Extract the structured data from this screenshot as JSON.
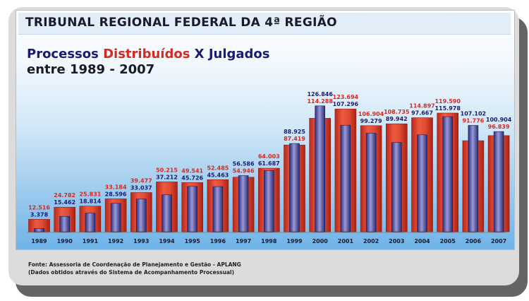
{
  "header": {
    "title": "TRIBUNAL REGIONAL FEDERAL DA 4ª REGIÃO",
    "subtitle_part1": "Processos ",
    "subtitle_part2": "Distribuídos",
    "subtitle_part3": " X ",
    "subtitle_part4": "Julgados",
    "subtitle_line2": "entre 1989 - 2007"
  },
  "footer": {
    "source_line1": "Fonte: Assessoria de Coordenação de Planejamento e Gestão - APLANG",
    "source_line2": "(Dados obtidos através do Sistema de Acompanhamento Processual)"
  },
  "colors": {
    "distribuidos": "#e0442f",
    "julgados": "#5353a8",
    "label_distribuidos": "#d42a20",
    "label_julgados": "#1b1b74"
  },
  "chart_data": {
    "type": "bar",
    "title": "Processos Distribuídos X Julgados entre 1989 - 2007",
    "xlabel": "",
    "ylabel": "",
    "grid": false,
    "legend": "none",
    "categories": [
      "1989",
      "1990",
      "1991",
      "1992",
      "1993",
      "1994",
      "1995",
      "1996",
      "1997",
      "1998",
      "1999",
      "2000",
      "2001",
      "2002",
      "2003",
      "2004",
      "2005",
      "2006",
      "2007"
    ],
    "series": [
      {
        "name": "Distribuídos",
        "values": [
          12516,
          24782,
          25831,
          33184,
          39477,
          50215,
          49541,
          52485,
          54946,
          64003,
          87419,
          114288,
          123694,
          106904,
          108735,
          114897,
          119590,
          91776,
          96839
        ],
        "labels": [
          "12.516",
          "24.782",
          "25.831",
          "33.184",
          "39.477",
          "50.215",
          "49.541",
          "52.485",
          "54.946",
          "64.003",
          "87.419",
          "114.288",
          "123.694",
          "106.904",
          "108.735",
          "114.897",
          "119.590",
          "91.776",
          "96.839"
        ]
      },
      {
        "name": "Julgados",
        "values": [
          3378,
          15462,
          18814,
          28596,
          33037,
          37212,
          45726,
          45463,
          56586,
          61687,
          88925,
          126846,
          107296,
          99279,
          89942,
          97667,
          115978,
          107102,
          100904
        ],
        "labels": [
          "3.378",
          "15.462",
          "18.814",
          "28.596",
          "33.037",
          "37.212",
          "45.726",
          "45.463",
          "56.586",
          "61.687",
          "88.925",
          "126.846",
          "107.296",
          "99.279",
          "89.942",
          "97.667",
          "115.978",
          "107.102",
          "100.904"
        ]
      }
    ]
  }
}
